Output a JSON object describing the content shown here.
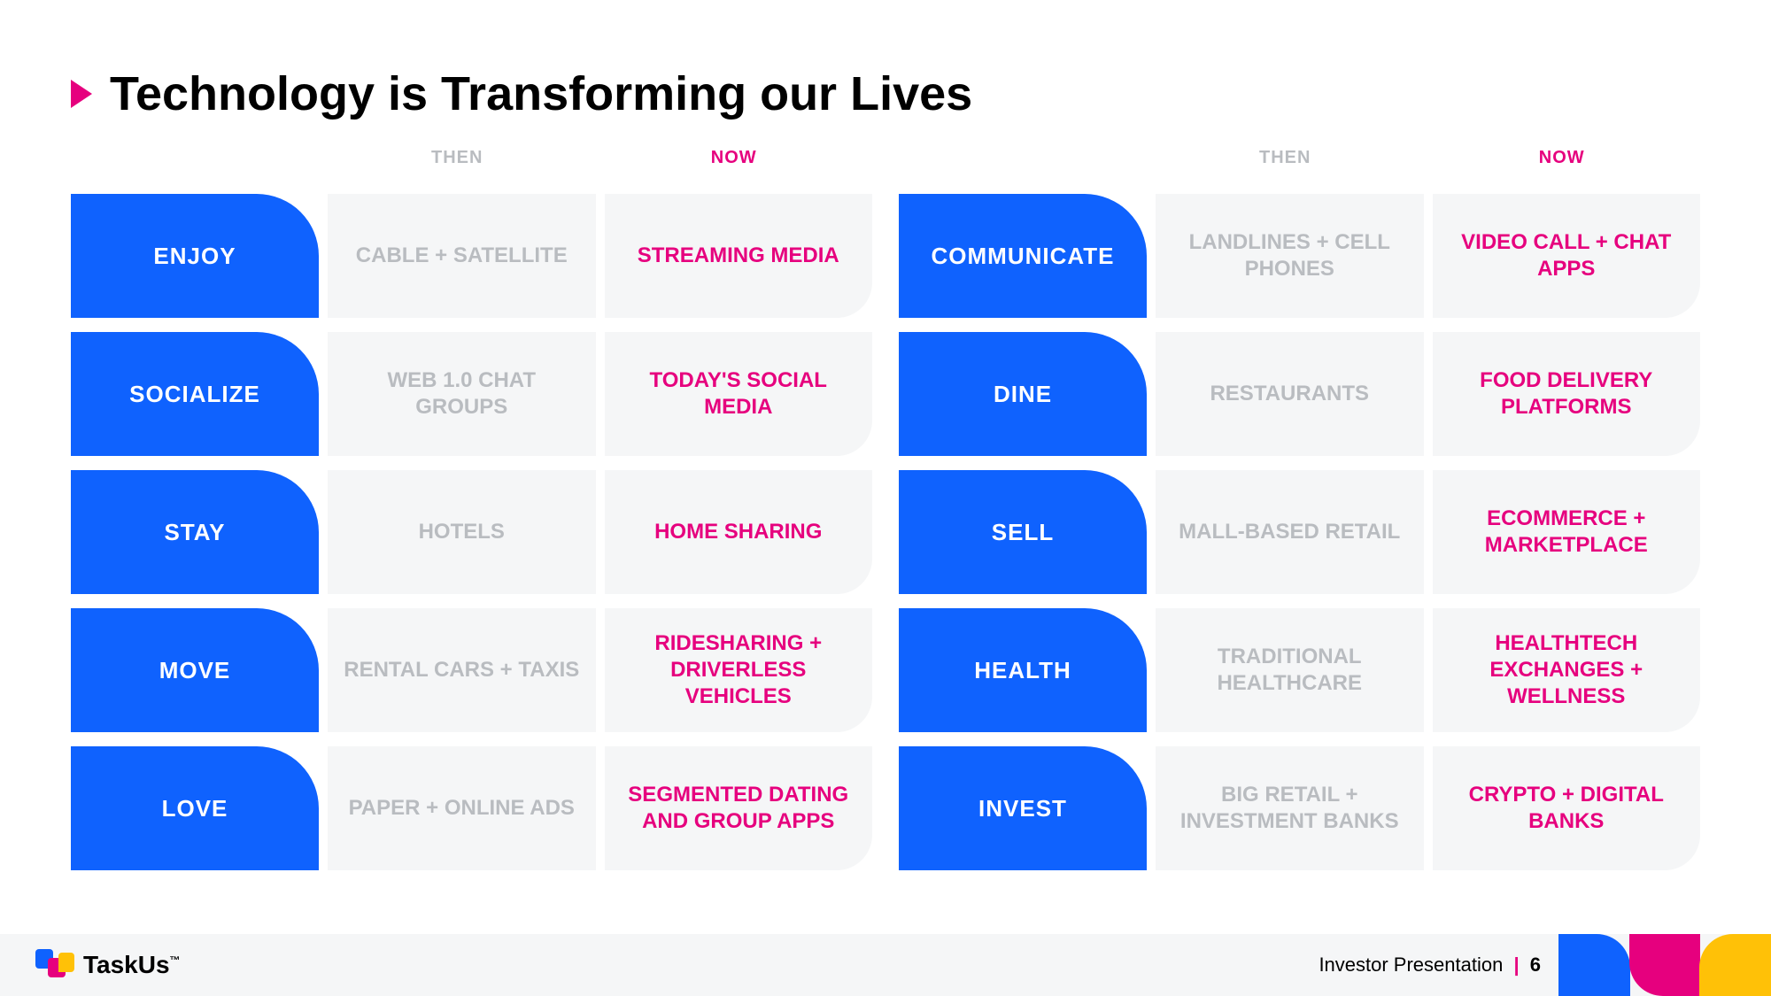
{
  "title": "Technology is Transforming our Lives",
  "headers": {
    "then": "THEN",
    "now": "NOW"
  },
  "colors": {
    "blue": "#0f62fe",
    "pink": "#e6007e",
    "yellow": "#ffc107",
    "grey_text": "#b9bcc0",
    "cell_bg": "#f5f6f7",
    "title_color": "#000000"
  },
  "left": [
    {
      "category": "ENJOY",
      "then": "CABLE + SATELLITE",
      "now": "STREAMING MEDIA"
    },
    {
      "category": "SOCIALIZE",
      "then": "WEB 1.0 CHAT GROUPS",
      "now": "TODAY'S SOCIAL MEDIA"
    },
    {
      "category": "STAY",
      "then": "HOTELS",
      "now": "HOME SHARING"
    },
    {
      "category": "MOVE",
      "then": "RENTAL CARS + TAXIS",
      "now": "RIDESHARING + DRIVERLESS VEHICLES"
    },
    {
      "category": "LOVE",
      "then": "PAPER + ONLINE ADS",
      "now": "SEGMENTED DATING AND GROUP APPS"
    }
  ],
  "right": [
    {
      "category": "COMMUNICATE",
      "then": "LANDLINES + CELL PHONES",
      "now": "VIDEO CALL + CHAT APPS"
    },
    {
      "category": "DINE",
      "then": "RESTAURANTS",
      "now": "FOOD DELIVERY PLATFORMS"
    },
    {
      "category": "SELL",
      "then": "MALL-BASED RETAIL",
      "now": "ECOMMERCE + MARKETPLACE"
    },
    {
      "category": "HEALTH",
      "then": "TRADITIONAL HEALTHCARE",
      "now": "HEALTHTECH EXCHANGES + WELLNESS"
    },
    {
      "category": "INVEST",
      "then": "BIG RETAIL + INVESTMENT BANKS",
      "now": "CRYPTO + DIGITAL BANKS"
    }
  ],
  "footer": {
    "brand": "TaskUs",
    "tm": "™",
    "label": "Investor Presentation",
    "page": "6"
  }
}
